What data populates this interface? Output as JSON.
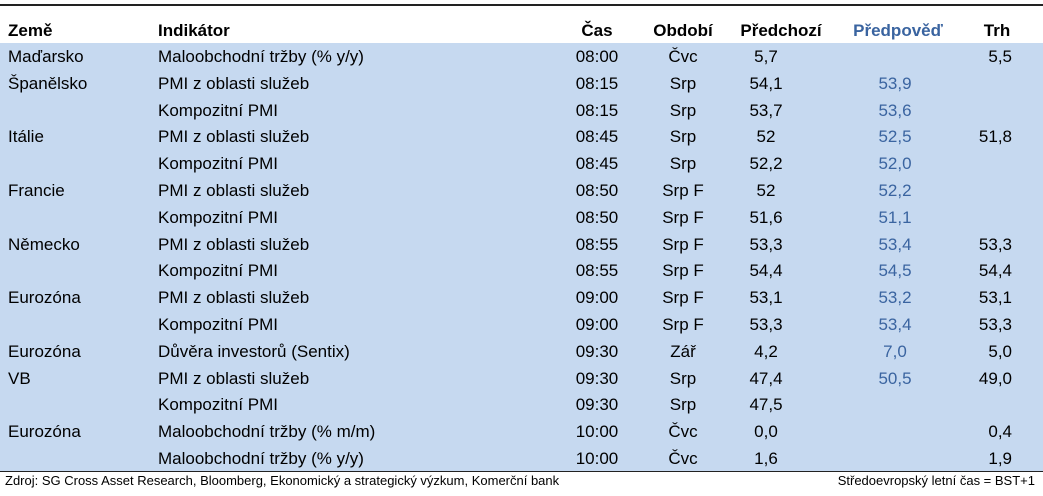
{
  "table": {
    "headers": [
      "Země",
      "Indikátor",
      "Čas",
      "Období",
      "Předchozí",
      "Předpověď",
      "Trh"
    ],
    "rows": [
      [
        "Maďarsko",
        "Maloobchodní tržby (% y/y)",
        "08:00",
        "Čvc",
        "5,7",
        null,
        "5,5"
      ],
      [
        "Španělsko",
        "PMI z oblasti služeb",
        "08:15",
        "Srp",
        "54,1",
        "53,9",
        null
      ],
      [
        null,
        "Kompozitní PMI",
        "08:15",
        "Srp",
        "53,7",
        "53,6",
        null
      ],
      [
        "Itálie",
        "PMI z oblasti služeb",
        "08:45",
        "Srp",
        "52",
        "52,5",
        "51,8"
      ],
      [
        null,
        "Kompozitní PMI",
        "08:45",
        "Srp",
        "52,2",
        "52,0",
        null
      ],
      [
        "Francie",
        "PMI z oblasti služeb",
        "08:50",
        "Srp F",
        "52",
        "52,2",
        null
      ],
      [
        null,
        "Kompozitní PMI",
        "08:50",
        "Srp F",
        "51,6",
        "51,1",
        null
      ],
      [
        "Německo",
        "PMI z oblasti služeb",
        "08:55",
        "Srp F",
        "53,3",
        "53,4",
        "53,3"
      ],
      [
        null,
        "Kompozitní PMI",
        "08:55",
        "Srp F",
        "54,4",
        "54,5",
        "54,4"
      ],
      [
        "Eurozóna",
        "PMI z oblasti služeb",
        "09:00",
        "Srp F",
        "53,1",
        "53,2",
        "53,1"
      ],
      [
        null,
        "Kompozitní PMI",
        "09:00",
        "Srp F",
        "53,3",
        "53,4",
        "53,3"
      ],
      [
        "Eurozóna",
        "Důvěra investorů (Sentix)",
        "09:30",
        "Zář",
        "4,2",
        "7,0",
        "5,0"
      ],
      [
        "VB",
        "PMI z oblasti služeb",
        "09:30",
        "Srp",
        "47,4",
        "50,5",
        "49,0"
      ],
      [
        null,
        "Kompozitní PMI",
        "09:30",
        "Srp",
        "47,5",
        null,
        null
      ],
      [
        "Eurozóna",
        "Maloobchodní tržby (% m/m)",
        "10:00",
        "Čvc",
        "0,0",
        null,
        "0,4"
      ],
      [
        null,
        "Maloobchodní tržby (% y/y)",
        "10:00",
        "Čvc",
        "1,6",
        null,
        "1,9"
      ]
    ]
  },
  "footer": {
    "source": "Zdroj: SG Cross Asset Research, Bloomberg, Ekonomický a strategický výzkum, Komerční bank",
    "note": "Středoevropský letní čas = BST+1"
  }
}
